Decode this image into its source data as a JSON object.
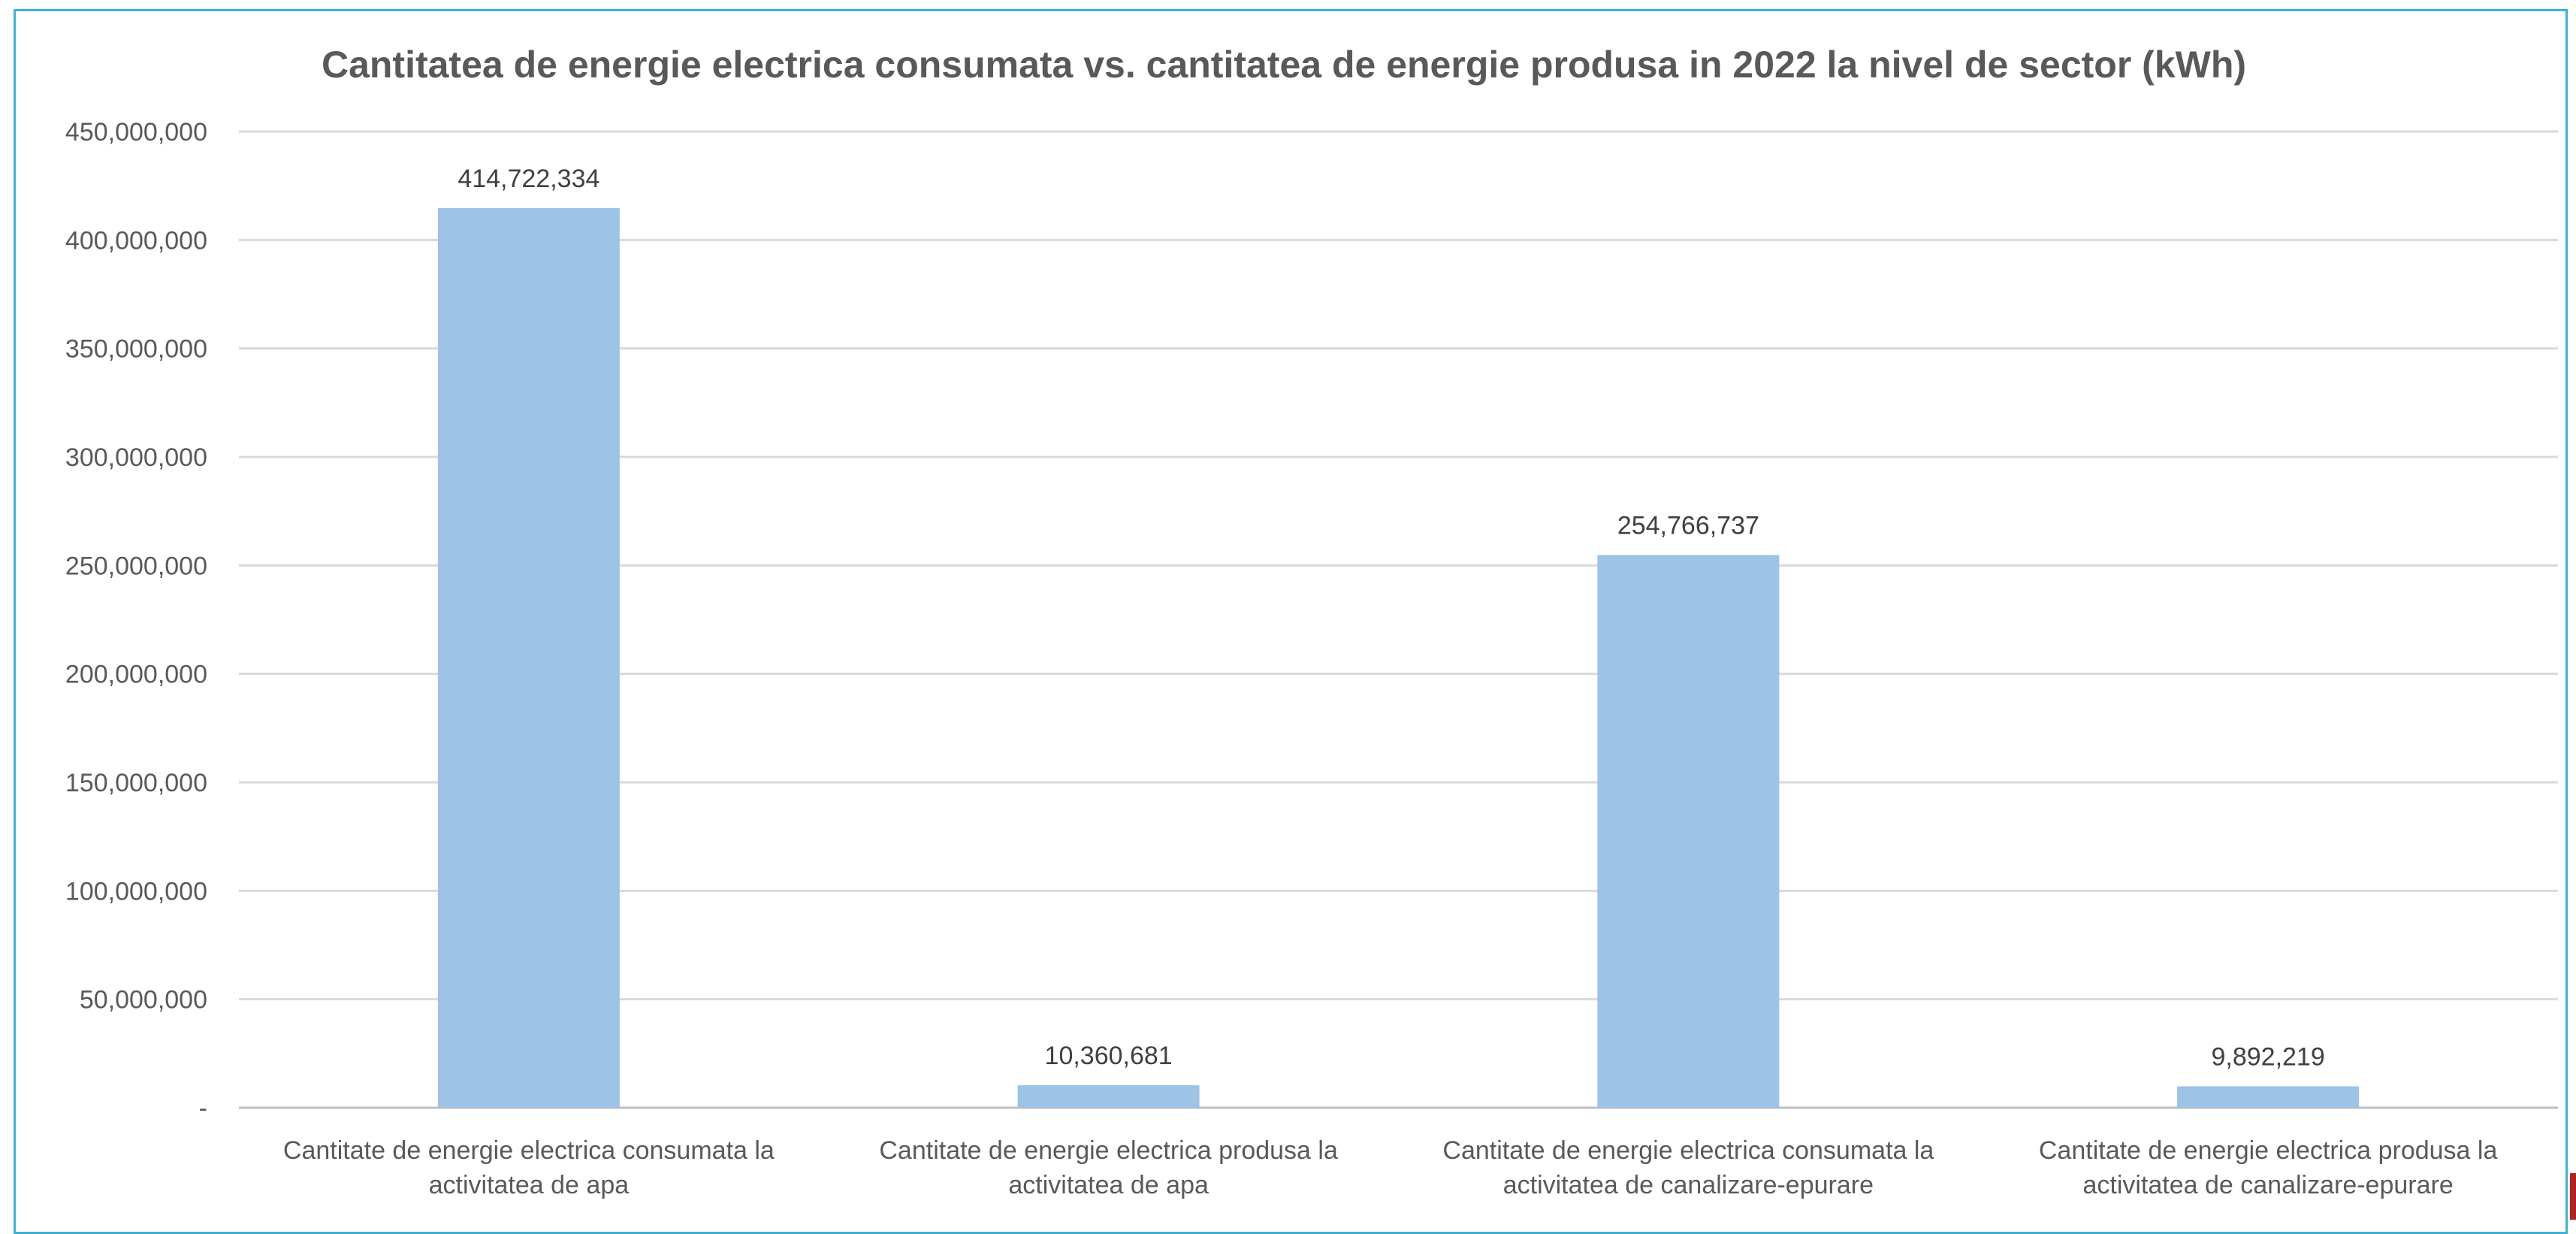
{
  "chart_data": {
    "type": "bar",
    "title": "Cantitatea de energie electrica consumata vs. cantitatea de energie produsa in 2022 la nivel de sector (kWh)",
    "categories": [
      [
        "Cantitate de energie electrica consumata la",
        "activitatea de apa"
      ],
      [
        "Cantitate de energie electrica produsa la",
        "activitatea de apa"
      ],
      [
        "Cantitate de energie electrica consumata la",
        "activitatea de canalizare-epurare"
      ],
      [
        "Cantitate de energie electrica produsa la",
        "activitatea de canalizare-epurare"
      ]
    ],
    "values": [
      414722334,
      10360681,
      254766737,
      9892219
    ],
    "data_labels": [
      "414,722,334",
      "10,360,681",
      "254,766,737",
      "9,892,219"
    ],
    "ylim": [
      0,
      450000000
    ],
    "yticks": [
      0,
      50000000,
      100000000,
      150000000,
      200000000,
      250000000,
      300000000,
      350000000,
      400000000,
      450000000
    ],
    "ytick_labels": [
      "-",
      "50,000,000",
      "100,000,000",
      "150,000,000",
      "200,000,000",
      "250,000,000",
      "300,000,000",
      "350,000,000",
      "400,000,000",
      "450,000,000"
    ],
    "grid": true,
    "legend": "none",
    "bar_color": "#9dc3e6"
  }
}
